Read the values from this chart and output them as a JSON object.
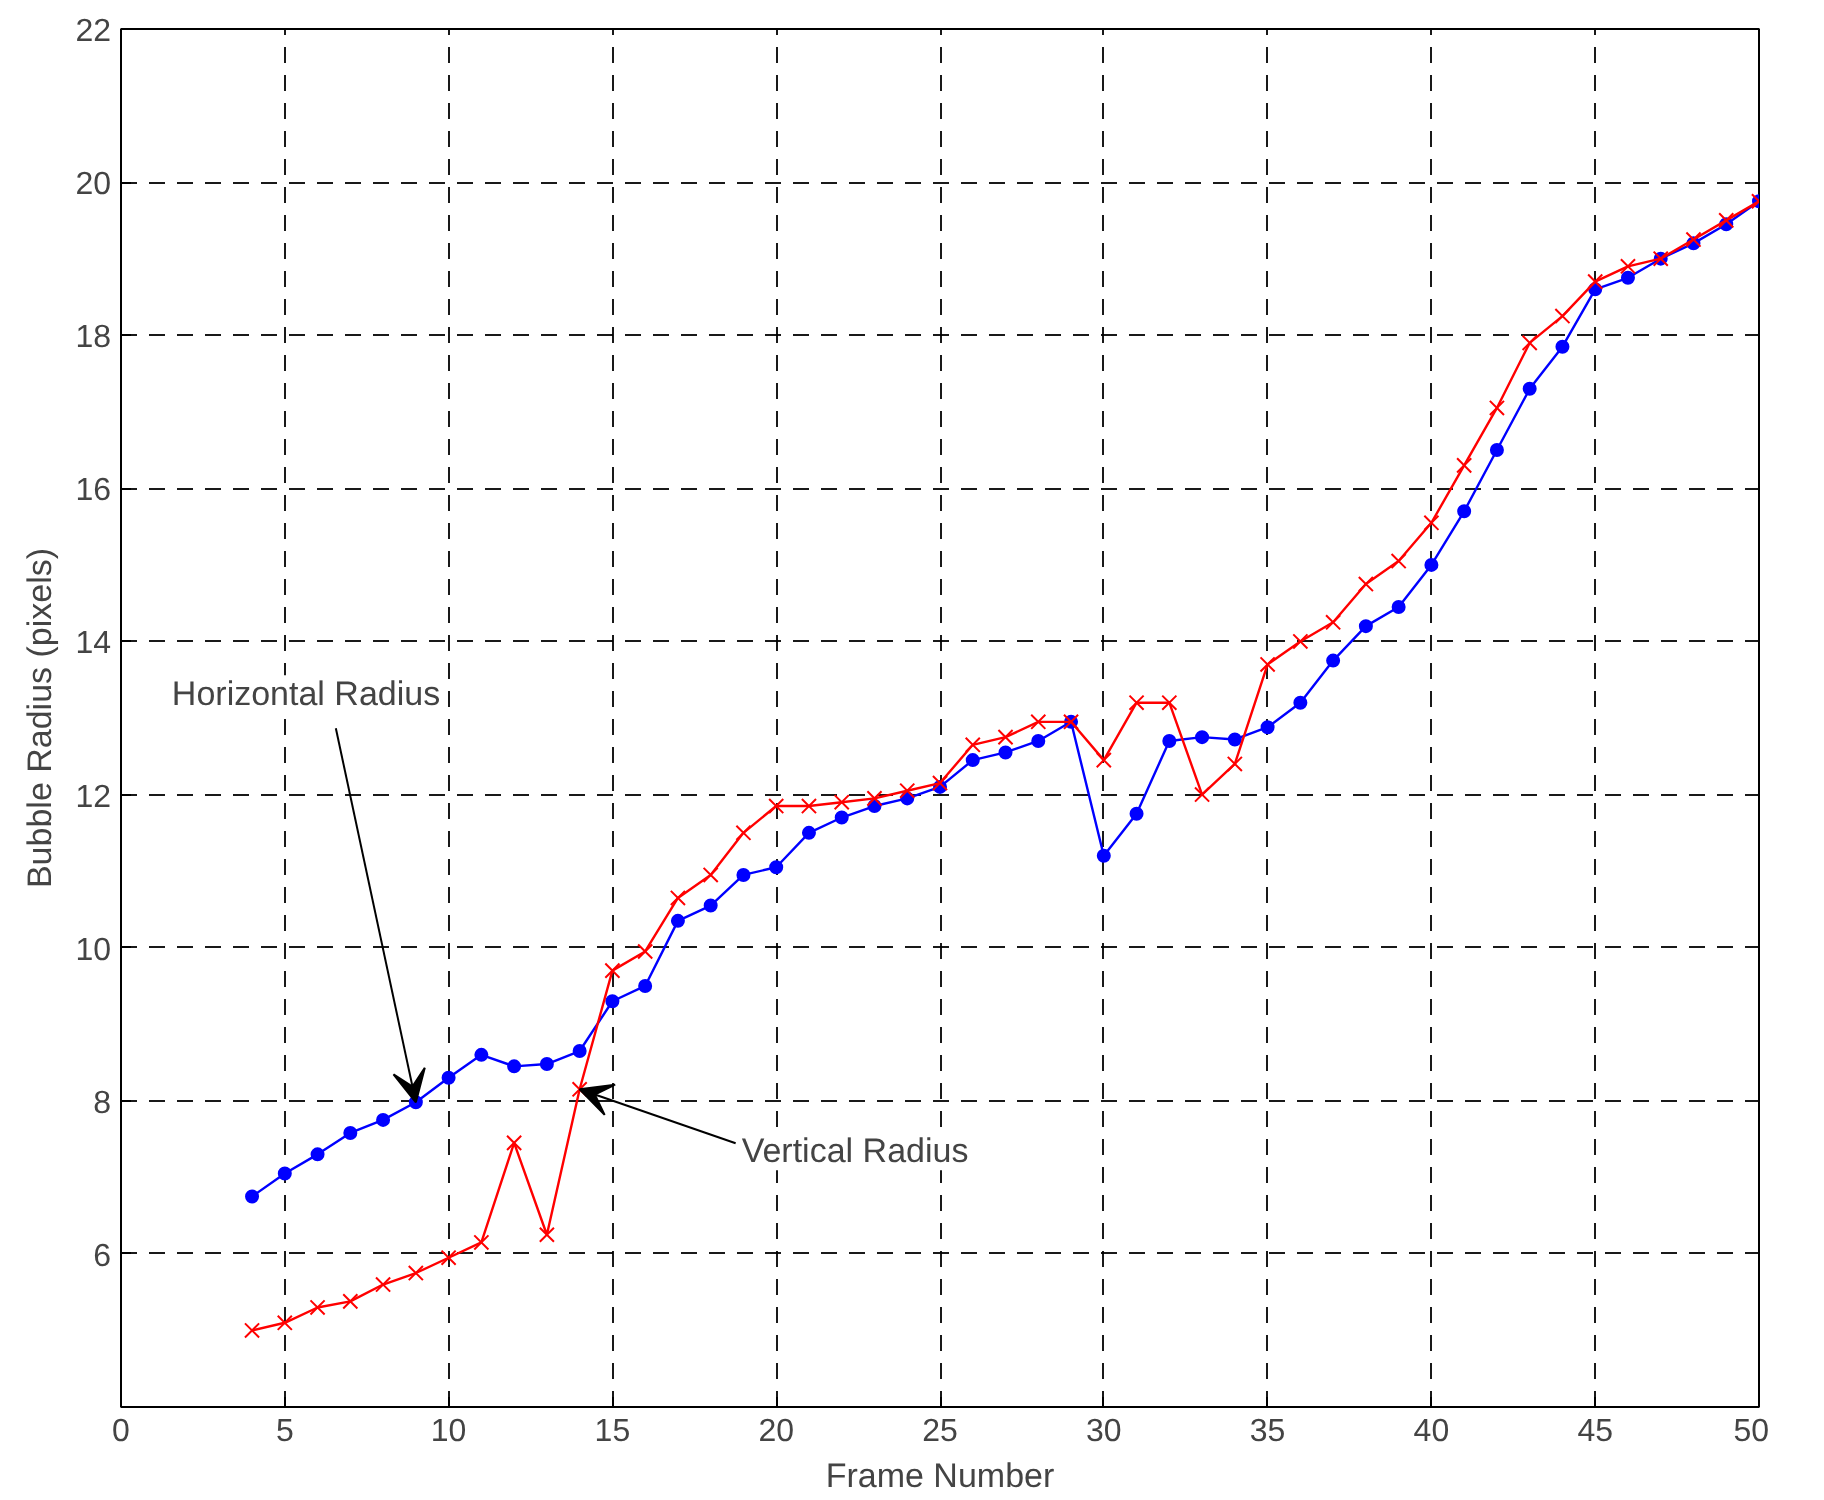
{
  "chart_data": {
    "type": "line",
    "xlabel": "Frame Number",
    "ylabel": "Bubble Radius (pixels)",
    "x": [
      4,
      5,
      6,
      7,
      8,
      9,
      10,
      11,
      12,
      13,
      14,
      15,
      16,
      17,
      18,
      19,
      20,
      21,
      22,
      23,
      24,
      25,
      26,
      27,
      28,
      29,
      30,
      31,
      32,
      33,
      34,
      35,
      36,
      37,
      38,
      39,
      40,
      41,
      42,
      43,
      44,
      45,
      46,
      47,
      48,
      49,
      50
    ],
    "series": [
      {
        "color": "#0000ff",
        "marker": "circle",
        "values": [
          6.75,
          7.05,
          7.3,
          7.58,
          7.75,
          7.98,
          8.3,
          8.6,
          8.45,
          8.48,
          8.65,
          9.3,
          9.5,
          10.35,
          10.55,
          10.95,
          11.05,
          11.5,
          11.7,
          11.85,
          11.95,
          12.1,
          12.45,
          12.55,
          12.7,
          12.95,
          11.2,
          11.75,
          12.7,
          12.75,
          12.72,
          12.88,
          13.2,
          13.75,
          14.2,
          14.45,
          15.0,
          15.7,
          16.5,
          17.3,
          17.85,
          18.6,
          18.75,
          19.0,
          19.2,
          19.45,
          19.75
        ]
      },
      {
        "color": "#ff0000",
        "marker": "cross",
        "values": [
          5.0,
          5.1,
          5.3,
          5.38,
          5.6,
          5.75,
          5.95,
          6.15,
          7.45,
          6.25,
          8.15,
          9.7,
          9.95,
          10.65,
          10.95,
          11.5,
          11.85,
          11.85,
          11.9,
          11.95,
          12.05,
          12.15,
          12.65,
          12.75,
          12.95,
          12.95,
          12.45,
          13.2,
          13.2,
          12.0,
          12.4,
          13.7,
          14.0,
          14.25,
          14.75,
          15.05,
          15.55,
          16.3,
          17.05,
          17.9,
          18.25,
          18.7,
          18.9,
          19.0,
          19.25,
          19.5,
          19.75
        ]
      }
    ],
    "annotations": [
      {
        "text": "Horizontal Radius",
        "x": 9,
        "y": 7.98
      },
      {
        "text": "Vertical Radius",
        "x": 14,
        "y": 8.15
      }
    ],
    "xlim": [
      0,
      50
    ],
    "ylim": [
      4,
      22
    ],
    "xticks": [
      0,
      5,
      10,
      15,
      20,
      25,
      30,
      35,
      40,
      45,
      50
    ],
    "yticks": [
      6,
      8,
      10,
      12,
      14,
      16,
      18,
      20,
      22
    ],
    "grid": true,
    "line_style": "solid"
  }
}
